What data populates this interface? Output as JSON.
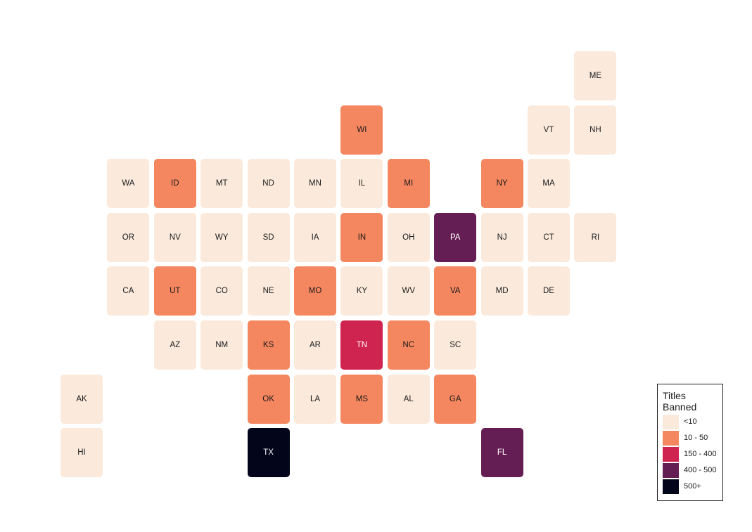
{
  "palette": {
    "lt10": "#fbeadc",
    "10-50": "#f4875f",
    "150-400": "#cf2350",
    "400-500": "#651e53",
    "500+": "#03051a"
  },
  "legend": {
    "title": "Titles\nBanned",
    "items": [
      {
        "key": "lt10",
        "label": "<10"
      },
      {
        "key": "10-50",
        "label": "10 - 50"
      },
      {
        "key": "150-400",
        "label": "150 - 400"
      },
      {
        "key": "400-500",
        "label": "400 - 500"
      },
      {
        "key": "500+",
        "label": "500+"
      }
    ]
  },
  "states": [
    {
      "abbr": "ME",
      "col": 11,
      "row": 0,
      "category": "lt10"
    },
    {
      "abbr": "WI",
      "col": 6,
      "row": 1,
      "category": "10-50"
    },
    {
      "abbr": "VT",
      "col": 10,
      "row": 1,
      "category": "lt10"
    },
    {
      "abbr": "NH",
      "col": 11,
      "row": 1,
      "category": "lt10"
    },
    {
      "abbr": "WA",
      "col": 1,
      "row": 2,
      "category": "lt10"
    },
    {
      "abbr": "ID",
      "col": 2,
      "row": 2,
      "category": "10-50"
    },
    {
      "abbr": "MT",
      "col": 3,
      "row": 2,
      "category": "lt10"
    },
    {
      "abbr": "ND",
      "col": 4,
      "row": 2,
      "category": "lt10"
    },
    {
      "abbr": "MN",
      "col": 5,
      "row": 2,
      "category": "lt10"
    },
    {
      "abbr": "IL",
      "col": 6,
      "row": 2,
      "category": "lt10"
    },
    {
      "abbr": "MI",
      "col": 7,
      "row": 2,
      "category": "10-50"
    },
    {
      "abbr": "NY",
      "col": 9,
      "row": 2,
      "category": "10-50"
    },
    {
      "abbr": "MA",
      "col": 10,
      "row": 2,
      "category": "lt10"
    },
    {
      "abbr": "OR",
      "col": 1,
      "row": 3,
      "category": "lt10"
    },
    {
      "abbr": "NV",
      "col": 2,
      "row": 3,
      "category": "lt10"
    },
    {
      "abbr": "WY",
      "col": 3,
      "row": 3,
      "category": "lt10"
    },
    {
      "abbr": "SD",
      "col": 4,
      "row": 3,
      "category": "lt10"
    },
    {
      "abbr": "IA",
      "col": 5,
      "row": 3,
      "category": "lt10"
    },
    {
      "abbr": "IN",
      "col": 6,
      "row": 3,
      "category": "10-50"
    },
    {
      "abbr": "OH",
      "col": 7,
      "row": 3,
      "category": "lt10"
    },
    {
      "abbr": "PA",
      "col": 8,
      "row": 3,
      "category": "400-500"
    },
    {
      "abbr": "NJ",
      "col": 9,
      "row": 3,
      "category": "lt10"
    },
    {
      "abbr": "CT",
      "col": 10,
      "row": 3,
      "category": "lt10"
    },
    {
      "abbr": "RI",
      "col": 11,
      "row": 3,
      "category": "lt10"
    },
    {
      "abbr": "CA",
      "col": 1,
      "row": 4,
      "category": "lt10"
    },
    {
      "abbr": "UT",
      "col": 2,
      "row": 4,
      "category": "10-50"
    },
    {
      "abbr": "CO",
      "col": 3,
      "row": 4,
      "category": "lt10"
    },
    {
      "abbr": "NE",
      "col": 4,
      "row": 4,
      "category": "lt10"
    },
    {
      "abbr": "MO",
      "col": 5,
      "row": 4,
      "category": "10-50"
    },
    {
      "abbr": "KY",
      "col": 6,
      "row": 4,
      "category": "lt10"
    },
    {
      "abbr": "WV",
      "col": 7,
      "row": 4,
      "category": "lt10"
    },
    {
      "abbr": "VA",
      "col": 8,
      "row": 4,
      "category": "10-50"
    },
    {
      "abbr": "MD",
      "col": 9,
      "row": 4,
      "category": "lt10"
    },
    {
      "abbr": "DE",
      "col": 10,
      "row": 4,
      "category": "lt10"
    },
    {
      "abbr": "AZ",
      "col": 2,
      "row": 5,
      "category": "lt10"
    },
    {
      "abbr": "NM",
      "col": 3,
      "row": 5,
      "category": "lt10"
    },
    {
      "abbr": "KS",
      "col": 4,
      "row": 5,
      "category": "10-50"
    },
    {
      "abbr": "AR",
      "col": 5,
      "row": 5,
      "category": "lt10"
    },
    {
      "abbr": "TN",
      "col": 6,
      "row": 5,
      "category": "150-400"
    },
    {
      "abbr": "NC",
      "col": 7,
      "row": 5,
      "category": "10-50"
    },
    {
      "abbr": "SC",
      "col": 8,
      "row": 5,
      "category": "lt10"
    },
    {
      "abbr": "AK",
      "col": 0,
      "row": 6,
      "category": "lt10"
    },
    {
      "abbr": "OK",
      "col": 4,
      "row": 6,
      "category": "10-50"
    },
    {
      "abbr": "LA",
      "col": 5,
      "row": 6,
      "category": "lt10"
    },
    {
      "abbr": "MS",
      "col": 6,
      "row": 6,
      "category": "10-50"
    },
    {
      "abbr": "AL",
      "col": 7,
      "row": 6,
      "category": "lt10"
    },
    {
      "abbr": "GA",
      "col": 8,
      "row": 6,
      "category": "10-50"
    },
    {
      "abbr": "HI",
      "col": 0,
      "row": 7,
      "category": "lt10"
    },
    {
      "abbr": "TX",
      "col": 4,
      "row": 7,
      "category": "500+"
    },
    {
      "abbr": "FL",
      "col": 9,
      "row": 7,
      "category": "400-500"
    }
  ]
}
